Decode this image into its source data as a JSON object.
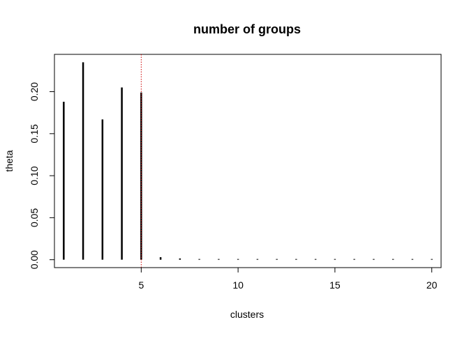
{
  "chart_data": {
    "type": "bar",
    "title": "number of groups",
    "xlabel": "clusters",
    "ylabel": "theta",
    "x": [
      1,
      2,
      3,
      4,
      5,
      6,
      7,
      8,
      9,
      10,
      11,
      12,
      13,
      14,
      15,
      16,
      17,
      18,
      19,
      20
    ],
    "values": [
      0.188,
      0.235,
      0.167,
      0.205,
      0.199,
      0.003,
      0.0015,
      0.0005,
      0.0003,
      0.0002,
      0.0001,
      0.0001,
      0.0001,
      0.0001,
      0.0001,
      0.0001,
      0.0001,
      0.0001,
      0.0001,
      0.0001
    ],
    "xlim": [
      0.52,
      20.48
    ],
    "ylim": [
      -0.0094,
      0.2444
    ],
    "xticks": [
      5,
      10,
      15,
      20
    ],
    "yticks": [
      0.0,
      0.05,
      0.1,
      0.15,
      0.2
    ],
    "xtick_labels": [
      "5",
      "10",
      "15",
      "20"
    ],
    "ytick_labels": [
      "0.00",
      "0.05",
      "0.10",
      "0.15",
      "0.20"
    ],
    "reference_line": {
      "x": 5,
      "color": "#cc0000",
      "style": "dotted"
    },
    "bar_color": "#000000",
    "grid": false,
    "legend": "none"
  }
}
